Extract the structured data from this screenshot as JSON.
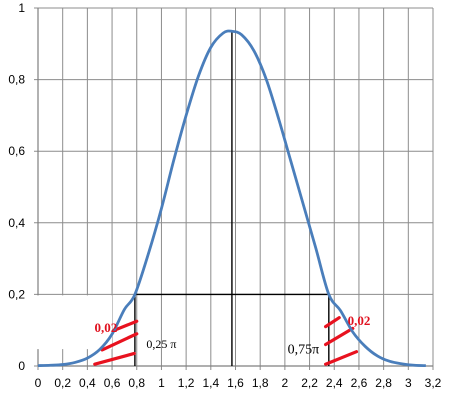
{
  "chart_data": {
    "type": "line",
    "title": "",
    "xlabel": "",
    "ylabel": "",
    "xlim": [
      0,
      3.2
    ],
    "ylim": [
      0,
      1
    ],
    "grid": true,
    "x_ticks": [
      "0",
      "0,2",
      "0,4",
      "0,6",
      "0,8",
      "1",
      "1,2",
      "1,4",
      "1,6",
      "1,8",
      "2",
      "2,2",
      "2,4",
      "2,6",
      "2,8",
      "3",
      "3,2"
    ],
    "y_ticks": [
      "0",
      "0,2",
      "0,4",
      "0,6",
      "0,8",
      "1"
    ],
    "series": [
      {
        "color": "#4a7ebb",
        "x": [
          0.0,
          0.1,
          0.2,
          0.3,
          0.4,
          0.5,
          0.6,
          0.7,
          0.785,
          0.9,
          1.0,
          1.1,
          1.2,
          1.3,
          1.4,
          1.5,
          1.571,
          1.65,
          1.75,
          1.85,
          1.95,
          2.05,
          2.15,
          2.25,
          2.356,
          2.45,
          2.55,
          2.65,
          2.75,
          2.85,
          2.95,
          3.05,
          3.142
        ],
        "y": [
          0.001,
          0.002,
          0.004,
          0.01,
          0.022,
          0.046,
          0.089,
          0.158,
          0.2,
          0.32,
          0.44,
          0.575,
          0.7,
          0.81,
          0.89,
          0.93,
          0.935,
          0.925,
          0.88,
          0.8,
          0.69,
          0.57,
          0.45,
          0.33,
          0.2,
          0.155,
          0.095,
          0.055,
          0.028,
          0.013,
          0.006,
          0.002,
          0.001
        ]
      }
    ],
    "reference_lines": [
      {
        "kind": "vertical",
        "x": 1.571,
        "y_range": [
          0,
          0.935
        ]
      },
      {
        "kind": "horizontal",
        "y": 0.2,
        "x_range": [
          0.785,
          2.356
        ]
      },
      {
        "kind": "vertical",
        "x": 0.785,
        "y_range": [
          0,
          0.2
        ]
      },
      {
        "kind": "vertical",
        "x": 2.356,
        "y_range": [
          0,
          0.2
        ]
      }
    ],
    "annotations": [
      {
        "text": "0,02",
        "color": "#e0101e",
        "x": 0.55,
        "y": 0.095
      },
      {
        "text": "0,25 π",
        "color": "#000000",
        "x": 1.0,
        "y": 0.05
      },
      {
        "text": "0,02",
        "color": "#e0101e",
        "x": 2.6,
        "y": 0.115
      },
      {
        "text": "0,75π",
        "color": "#000000",
        "x": 2.15,
        "y": 0.035
      }
    ]
  }
}
